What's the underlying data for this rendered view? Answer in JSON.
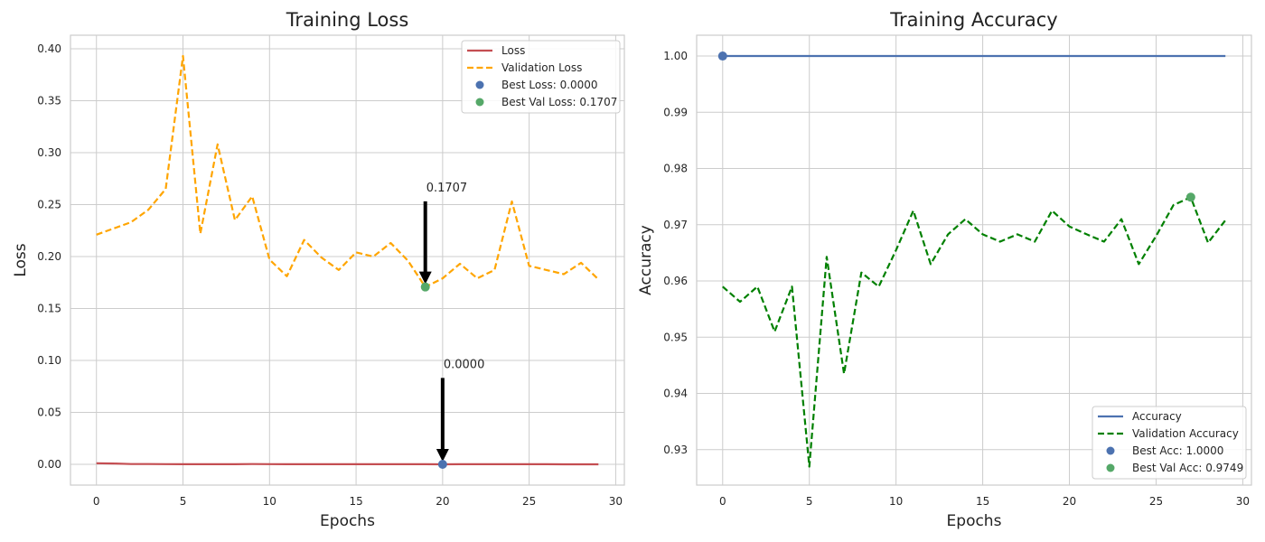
{
  "chart_data": [
    {
      "type": "line",
      "title": "Training Loss",
      "xlabel": "Epochs",
      "ylabel": "Loss",
      "xlim": [
        -1.5,
        30.5
      ],
      "ylim": [
        -0.02,
        0.413
      ],
      "xticks": [
        0,
        5,
        10,
        15,
        20,
        25,
        30
      ],
      "xtick_labels": [
        "0",
        "5",
        "10",
        "15",
        "20",
        "25",
        "30"
      ],
      "yticks": [
        0.0,
        0.05,
        0.1,
        0.15,
        0.2,
        0.25,
        0.3,
        0.35,
        0.4
      ],
      "ytick_labels": [
        "0.00",
        "0.05",
        "0.10",
        "0.15",
        "0.20",
        "0.25",
        "0.30",
        "0.35",
        "0.40"
      ],
      "grid": true,
      "legend_position": "top-right",
      "x": [
        0,
        1,
        2,
        3,
        4,
        5,
        6,
        7,
        8,
        9,
        10,
        11,
        12,
        13,
        14,
        15,
        16,
        17,
        18,
        19,
        20,
        21,
        22,
        23,
        24,
        25,
        26,
        27,
        28,
        29
      ],
      "series": [
        {
          "name": "Loss",
          "color": "#c44e52",
          "style": "solid",
          "values": [
            0.001,
            0.0008,
            0.0003,
            0.0003,
            0.0002,
            0.0001,
            0.0001,
            0.0001,
            0.0001,
            0.0003,
            0.0002,
            0.0001,
            0.0001,
            0.0001,
            0.0001,
            0.0001,
            0.0001,
            0.0001,
            0.0001,
            0.0001,
            0.0,
            0.0001,
            0.0001,
            0.0001,
            0.0001,
            0.0001,
            0.0001,
            0.0,
            0.0,
            0.0
          ]
        },
        {
          "name": "Validation Loss",
          "color": "#ffa500",
          "style": "dashed",
          "values": [
            0.221,
            0.227,
            0.233,
            0.245,
            0.265,
            0.393,
            0.222,
            0.308,
            0.235,
            0.258,
            0.197,
            0.181,
            0.216,
            0.199,
            0.187,
            0.204,
            0.2,
            0.213,
            0.196,
            0.1707,
            0.179,
            0.193,
            0.179,
            0.187,
            0.253,
            0.191,
            0.187,
            0.183,
            0.194,
            0.178
          ]
        }
      ],
      "markers": [
        {
          "name": "Best Loss: 0.0000",
          "color": "#4c72b0",
          "x": 20,
          "y": 0.0
        },
        {
          "name": "Best Val Loss: 0.1707",
          "color": "#55a868",
          "x": 19,
          "y": 0.1707
        }
      ],
      "annotations": [
        {
          "text": "0.1707",
          "x": 19,
          "y": 0.1707,
          "text_x": 19,
          "text_y": 0.267
        },
        {
          "text": "0.0000",
          "x": 20,
          "y": 0.0,
          "text_x": 20,
          "text_y": 0.097
        }
      ]
    },
    {
      "type": "line",
      "title": "Training Accuracy",
      "xlabel": "Epochs",
      "ylabel": "Accuracy",
      "xlim": [
        -1.5,
        30.5
      ],
      "ylim": [
        0.9237,
        1.0037
      ],
      "xticks": [
        0,
        5,
        10,
        15,
        20,
        25,
        30
      ],
      "xtick_labels": [
        "0",
        "5",
        "10",
        "15",
        "20",
        "25",
        "30"
      ],
      "yticks": [
        0.93,
        0.94,
        0.95,
        0.96,
        0.97,
        0.98,
        0.99,
        1.0
      ],
      "ytick_labels": [
        "0.93",
        "0.94",
        "0.95",
        "0.96",
        "0.97",
        "0.98",
        "0.99",
        "1.00"
      ],
      "grid": true,
      "legend_position": "bottom-right",
      "x": [
        0,
        1,
        2,
        3,
        4,
        5,
        6,
        7,
        8,
        9,
        10,
        11,
        12,
        13,
        14,
        15,
        16,
        17,
        18,
        19,
        20,
        21,
        22,
        23,
        24,
        25,
        26,
        27,
        28,
        29
      ],
      "series": [
        {
          "name": "Accuracy",
          "color": "#4c72b0",
          "style": "solid",
          "values": [
            1.0,
            1.0,
            1.0,
            1.0,
            1.0,
            1.0,
            1.0,
            1.0,
            1.0,
            1.0,
            1.0,
            1.0,
            1.0,
            1.0,
            1.0,
            1.0,
            1.0,
            1.0,
            1.0,
            1.0,
            1.0,
            1.0,
            1.0,
            1.0,
            1.0,
            1.0,
            1.0,
            1.0,
            1.0,
            1.0
          ]
        },
        {
          "name": "Validation Accuracy",
          "color": "#008000",
          "style": "dashed",
          "values": [
            0.959,
            0.9563,
            0.959,
            0.951,
            0.959,
            0.927,
            0.9643,
            0.9435,
            0.9615,
            0.959,
            0.9655,
            0.9725,
            0.963,
            0.9683,
            0.971,
            0.9683,
            0.967,
            0.9683,
            0.967,
            0.9725,
            0.9697,
            0.9683,
            0.967,
            0.971,
            0.963,
            0.968,
            0.9735,
            0.9749,
            0.9668,
            0.9708
          ]
        }
      ],
      "markers": [
        {
          "name": "Best Acc: 1.0000",
          "color": "#4c72b0",
          "x": 0,
          "y": 1.0
        },
        {
          "name": "Best Val Acc: 0.9749",
          "color": "#55a868",
          "x": 27,
          "y": 0.9749
        }
      ],
      "annotations": []
    }
  ]
}
